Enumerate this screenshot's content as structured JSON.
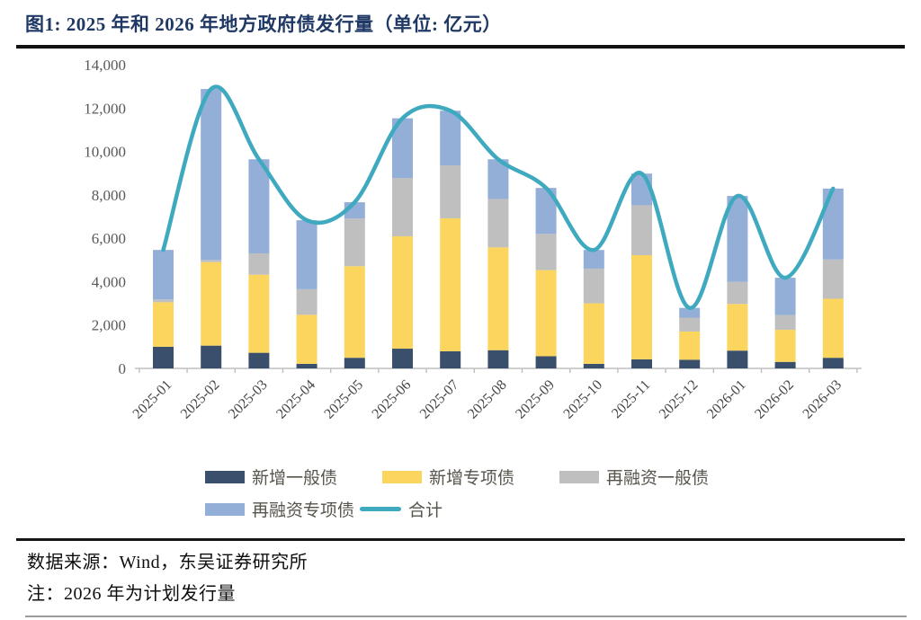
{
  "figure": {
    "title": "图1: 2025 年和 2026 年地方政府债发行量（单位: 亿元）"
  },
  "chart_data": {
    "type": "stacked-bar+line",
    "title": "2025 年和 2026 年地方政府债发行量",
    "unit": "亿元",
    "categories": [
      "2025-01",
      "2025-02",
      "2025-03",
      "2025-04",
      "2025-05",
      "2025-06",
      "2025-07",
      "2025-08",
      "2025-09",
      "2025-10",
      "2025-11",
      "2025-12",
      "2026-01",
      "2026-02",
      "2026-03"
    ],
    "series": [
      {
        "name": "新增一般债",
        "type": "bar",
        "color": "#394F6B",
        "values": [
          1000,
          1050,
          720,
          210,
          490,
          910,
          790,
          840,
          560,
          210,
          420,
          400,
          820,
          300,
          490
        ]
      },
      {
        "name": "新增专项债",
        "type": "bar",
        "color": "#FBD55E",
        "values": [
          2050,
          3850,
          3600,
          2260,
          4220,
          5180,
          6130,
          4740,
          3970,
          2790,
          4800,
          1300,
          2150,
          1480,
          2720
        ]
      },
      {
        "name": "再融资一般债",
        "type": "bar",
        "color": "#BFBFBF",
        "values": [
          130,
          100,
          980,
          1180,
          2200,
          2690,
          2440,
          2230,
          1670,
          1600,
          2300,
          640,
          1020,
          680,
          1810
        ]
      },
      {
        "name": "再融资专项债",
        "type": "bar",
        "color": "#93AFD8",
        "values": [
          2280,
          7880,
          4340,
          3180,
          750,
          2750,
          2520,
          1830,
          2120,
          860,
          1460,
          450,
          3960,
          1720,
          3270
        ]
      },
      {
        "name": "合计",
        "type": "line",
        "color": "#3FA9BF",
        "values": [
          5460,
          12880,
          9640,
          6830,
          7660,
          11530,
          11880,
          9640,
          8320,
          5460,
          8980,
          2790,
          7950,
          4180,
          8290
        ]
      }
    ],
    "ylim": [
      0,
      14000
    ],
    "ytick_step": 2000,
    "y_tick_labels": [
      "0",
      "2,000",
      "4,000",
      "6,000",
      "8,000",
      "10,000",
      "12,000",
      "14,000"
    ],
    "grid": false,
    "legend_position": "bottom"
  },
  "footer": {
    "source": "数据来源：Wind，东吴证券研究所",
    "note": "注：2026 年为计划发行量"
  }
}
